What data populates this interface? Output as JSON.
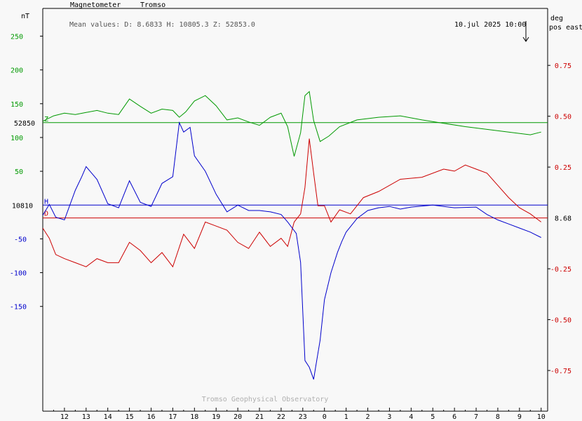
{
  "header": {
    "instrument": "Magnetometer",
    "station": "Tromso",
    "left_unit": "nT",
    "right_unit_line1": "deg",
    "right_unit_line2": "pos east",
    "mean_values": "Mean values:  D: 8.6833   H: 10805.3   Z: 52853.0",
    "timestamp": "10.jul 2025 10:00",
    "footer": "Tromso Geophysical Observatory"
  },
  "colors": {
    "background": "#f8f8f8",
    "axis": "#000000",
    "z_green": "#009900",
    "d_red": "#cc0000",
    "h_blue": "#0000cc",
    "footer_gray": "#b0b0b0"
  },
  "chart_data": {
    "type": "line",
    "x_unit": "hour (UTC)",
    "x_ticks": [
      "12",
      "13",
      "14",
      "15",
      "16",
      "17",
      "18",
      "19",
      "20",
      "21",
      "22",
      "23",
      "0",
      "1",
      "2",
      "3",
      "4",
      "5",
      "6",
      "7",
      "8",
      "9",
      "10"
    ],
    "xlim": [
      11,
      34.3
    ],
    "left_axis": {
      "unit": "nT",
      "ylim": [
        -305,
        291
      ],
      "green_ticks": [
        {
          "label": "250",
          "v": 250
        },
        {
          "label": "200",
          "v": 200
        },
        {
          "label": "150",
          "v": 150
        },
        {
          "label": "100",
          "v": 100
        },
        {
          "label": "50",
          "v": 50
        }
      ],
      "blue_ticks": [
        {
          "label": "-50",
          "v": -50
        },
        {
          "label": "-100",
          "v": -100
        },
        {
          "label": "-150",
          "v": -150
        }
      ],
      "baseline_labels": [
        {
          "label": "52850",
          "v": 0,
          "series": "Z",
          "baseline_offset": 122
        },
        {
          "label": "10810",
          "v": 0,
          "series": "H",
          "baseline_offset": 0
        }
      ]
    },
    "right_axis": {
      "unit": "deg pos east",
      "ylim": [
        -0.95,
        1.03
      ],
      "ticks": [
        0.75,
        0.5,
        0.25,
        -0.25,
        -0.5,
        -0.75
      ],
      "tick_labels": [
        "0.75",
        "0.50",
        "0.25",
        "-0.25",
        "-0.50",
        "-0.75"
      ],
      "baseline_label": "8.68"
    },
    "series": [
      {
        "name": "Z",
        "baseline": 52850,
        "x": [
          11,
          11.5,
          12,
          12.5,
          13,
          13.5,
          14,
          14.5,
          15,
          15.5,
          16,
          16.5,
          17,
          17.3,
          17.6,
          18,
          18.5,
          19,
          19.5,
          20,
          20.5,
          21,
          21.5,
          22,
          22.3,
          22.6,
          22.9,
          23.1,
          23.3,
          23.5,
          23.8,
          24.2,
          24.7,
          25.5,
          26.5,
          27.5,
          28.5,
          29.5,
          30.5,
          31.5,
          32.5,
          33.5,
          34
        ],
        "y": [
          2,
          10,
          14,
          12,
          15,
          18,
          14,
          12,
          35,
          24,
          14,
          20,
          18,
          8,
          16,
          32,
          40,
          25,
          4,
          7,
          1,
          -4,
          8,
          14,
          -6,
          -50,
          -15,
          40,
          46,
          3,
          -28,
          -20,
          -6,
          4,
          8,
          10,
          4,
          -1,
          -6,
          -10,
          -14,
          -18,
          -14
        ]
      },
      {
        "name": "D",
        "baseline": 8.68,
        "x": [
          11,
          11.3,
          11.6,
          12,
          12.5,
          13,
          13.5,
          14,
          14.5,
          15,
          15.5,
          16,
          16.5,
          17,
          17.5,
          18,
          18.5,
          19,
          19.5,
          20,
          20.5,
          21,
          21.5,
          22,
          22.3,
          22.6,
          22.9,
          23.1,
          23.3,
          23.5,
          23.7,
          24,
          24.3,
          24.7,
          25.2,
          25.8,
          26.5,
          27.5,
          28.5,
          29.5,
          30,
          30.5,
          31,
          31.5,
          32,
          32.5,
          33,
          33.5,
          34
        ],
        "y": [
          -0.05,
          -0.1,
          -0.18,
          -0.2,
          -0.22,
          -0.24,
          -0.2,
          -0.22,
          -0.22,
          -0.12,
          -0.16,
          -0.22,
          -0.17,
          -0.24,
          -0.08,
          -0.15,
          -0.02,
          -0.04,
          -0.06,
          -0.12,
          -0.15,
          -0.07,
          -0.14,
          -0.1,
          -0.14,
          -0.02,
          0.02,
          0.15,
          0.39,
          0.22,
          0.06,
          0.06,
          -0.02,
          0.04,
          0.02,
          0.1,
          0.13,
          0.19,
          0.2,
          0.24,
          0.23,
          0.26,
          0.24,
          0.22,
          0.16,
          0.1,
          0.05,
          0.02,
          -0.02
        ]
      },
      {
        "name": "H",
        "baseline": 10810,
        "x": [
          11,
          11.3,
          11.6,
          12,
          12.5,
          12.8,
          13,
          13.5,
          14,
          14.5,
          15,
          15.5,
          16,
          16.5,
          17,
          17.3,
          17.5,
          17.8,
          18,
          18.5,
          19,
          19.5,
          20,
          20.5,
          21,
          21.5,
          22,
          22.3,
          22.7,
          22.9,
          23.1,
          23.3,
          23.5,
          23.6,
          23.8,
          24,
          24.3,
          24.6,
          24.8,
          25,
          25.5,
          26,
          26.5,
          27,
          27.5,
          28,
          29,
          30,
          31,
          31.5,
          32,
          32.5,
          33,
          33.5,
          34
        ],
        "y": [
          -15,
          1,
          -18,
          -22,
          22,
          42,
          57,
          38,
          2,
          -4,
          36,
          4,
          -2,
          32,
          42,
          122,
          108,
          115,
          73,
          50,
          16,
          -10,
          0,
          -8,
          -8,
          -10,
          -14,
          -25,
          -42,
          -85,
          -230,
          -240,
          -258,
          -238,
          -200,
          -140,
          -100,
          -70,
          -54,
          -40,
          -20,
          -8,
          -4,
          -2,
          -6,
          -3,
          0,
          -4,
          -3,
          -14,
          -22,
          -28,
          -34,
          -40,
          -48
        ]
      }
    ],
    "hour_ticks": [
      "12",
      "13",
      "14",
      "15",
      "16",
      "17",
      "18",
      "19",
      "20",
      "21",
      "22",
      "23",
      "0",
      "1",
      "2",
      "3",
      "4",
      "5",
      "6",
      "7",
      "8",
      "9",
      "10"
    ],
    "vertical_axis_ticks": [
      250,
      200,
      150,
      100,
      50,
      0,
      -50,
      -100,
      -150
    ],
    "legend": "none",
    "grid": false
  }
}
